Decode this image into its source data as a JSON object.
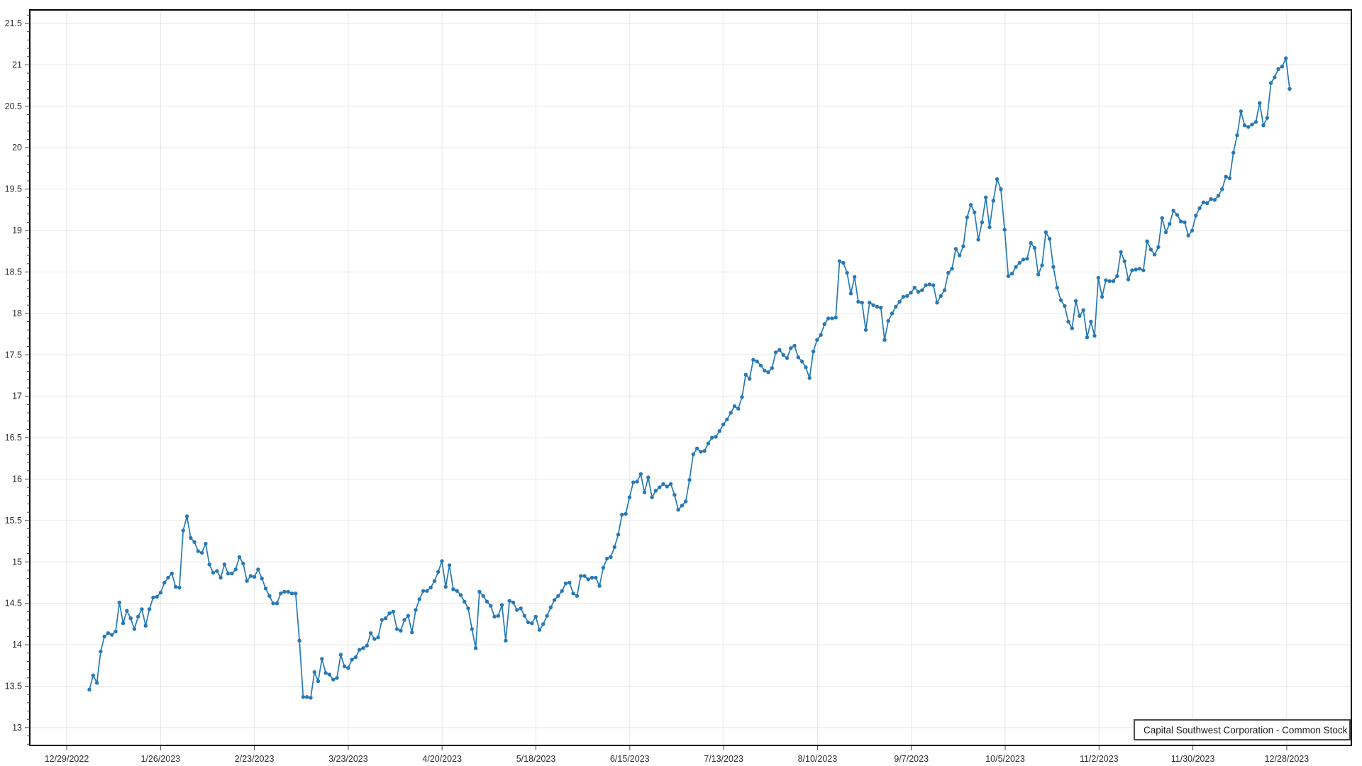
{
  "legend": {
    "label": "Capital Southwest Corporation - Common Stock"
  },
  "colors": {
    "series": "#2779b5",
    "grid": "#e6e6e6",
    "axis_border": "#000000",
    "tick": "#444444",
    "label": "#2b2b2b",
    "legend_border": "#4c4c4c",
    "background": "#ffffff"
  },
  "chart_data": {
    "type": "line",
    "title": "",
    "series_name": "Capital Southwest Corporation - Common Stock",
    "marker": "circle",
    "grid": true,
    "legend_position": "bottom-right",
    "xlabel": "",
    "ylabel": "",
    "ylim": [
      12.785,
      21.663
    ],
    "y_ticks": [
      13,
      13.5,
      14,
      14.5,
      15,
      15.5,
      16,
      16.5,
      17,
      17.5,
      18,
      18.5,
      19,
      19.5,
      20,
      20.5,
      21,
      21.5
    ],
    "y_minor_tick_step": 0.1,
    "x_tick_labels": [
      "12/29/2022",
      "1/26/2023",
      "2/23/2023",
      "3/23/2023",
      "4/20/2023",
      "5/18/2023",
      "6/15/2023",
      "7/13/2023",
      "8/10/2023",
      "9/7/2023",
      "10/5/2023",
      "11/2/2023",
      "11/30/2023",
      "12/28/2023"
    ],
    "values": [
      13.46,
      13.63,
      13.54,
      13.92,
      14.1,
      14.14,
      14.12,
      14.16,
      14.51,
      14.26,
      14.41,
      14.32,
      14.19,
      14.34,
      14.43,
      14.23,
      14.43,
      14.57,
      14.58,
      14.63,
      14.75,
      14.81,
      14.86,
      14.7,
      14.69,
      15.38,
      15.55,
      15.29,
      15.24,
      15.13,
      15.11,
      15.22,
      14.97,
      14.87,
      14.89,
      14.81,
      14.97,
      14.86,
      14.86,
      14.91,
      15.06,
      14.98,
      14.77,
      14.83,
      14.82,
      14.91,
      14.8,
      14.68,
      14.59,
      14.5,
      14.5,
      14.62,
      14.64,
      14.64,
      14.62,
      14.62,
      14.05,
      13.37,
      13.37,
      13.36,
      13.67,
      13.56,
      13.83,
      13.66,
      13.64,
      13.58,
      13.6,
      13.88,
      13.74,
      13.72,
      13.82,
      13.85,
      13.94,
      13.96,
      13.99,
      14.14,
      14.07,
      14.09,
      14.3,
      14.32,
      14.38,
      14.4,
      14.19,
      14.17,
      14.3,
      14.35,
      14.15,
      14.42,
      14.55,
      14.65,
      14.65,
      14.69,
      14.77,
      14.88,
      15.01,
      14.7,
      14.96,
      14.67,
      14.65,
      14.6,
      14.52,
      14.44,
      14.19,
      13.96,
      14.64,
      14.59,
      14.52,
      14.47,
      14.34,
      14.35,
      14.48,
      14.05,
      14.53,
      14.51,
      14.42,
      14.44,
      14.35,
      14.27,
      14.26,
      14.34,
      14.18,
      14.25,
      14.35,
      14.45,
      14.54,
      14.59,
      14.65,
      14.74,
      14.75,
      14.62,
      14.59,
      14.83,
      14.83,
      14.79,
      14.81,
      14.81,
      14.71,
      14.93,
      15.04,
      15.06,
      15.18,
      15.33,
      15.57,
      15.58,
      15.78,
      15.96,
      15.97,
      16.06,
      15.84,
      16.02,
      15.78,
      15.86,
      15.9,
      15.94,
      15.91,
      15.94,
      15.81,
      15.63,
      15.68,
      15.73,
      15.99,
      16.3,
      16.37,
      16.33,
      16.34,
      16.43,
      16.5,
      16.51,
      16.58,
      16.66,
      16.72,
      16.8,
      16.88,
      16.85,
      16.99,
      17.26,
      17.21,
      17.44,
      17.42,
      17.37,
      17.31,
      17.29,
      17.34,
      17.53,
      17.56,
      17.5,
      17.46,
      17.58,
      17.61,
      17.47,
      17.42,
      17.35,
      17.22,
      17.54,
      17.68,
      17.74,
      17.87,
      17.94,
      17.94,
      17.95,
      18.63,
      18.61,
      18.49,
      18.24,
      18.44,
      18.14,
      18.13,
      17.8,
      18.13,
      18.1,
      18.08,
      18.07,
      17.68,
      17.91,
      18.0,
      18.08,
      18.14,
      18.2,
      18.21,
      18.25,
      18.31,
      18.26,
      18.28,
      18.34,
      18.35,
      18.34,
      18.13,
      18.21,
      18.28,
      18.49,
      18.54,
      18.78,
      18.7,
      18.81,
      19.16,
      19.31,
      19.22,
      18.89,
      19.1,
      19.4,
      19.04,
      19.36,
      19.62,
      19.5,
      19.01,
      18.45,
      18.48,
      18.56,
      18.61,
      18.65,
      18.66,
      18.85,
      18.79,
      18.47,
      18.58,
      18.98,
      18.9,
      18.56,
      18.31,
      18.16,
      18.09,
      17.9,
      17.82,
      18.15,
      17.97,
      18.04,
      17.71,
      17.9,
      17.73,
      18.43,
      18.2,
      18.4,
      18.39,
      18.39,
      18.45,
      18.74,
      18.63,
      18.41,
      18.52,
      18.53,
      18.54,
      18.52,
      18.87,
      18.77,
      18.71,
      18.8,
      19.15,
      18.98,
      19.08,
      19.24,
      19.19,
      19.11,
      19.1,
      18.94,
      19.0,
      19.18,
      19.27,
      19.34,
      19.33,
      19.38,
      19.37,
      19.42,
      19.5,
      19.65,
      19.63,
      19.94,
      20.15,
      20.44,
      20.27,
      20.25,
      20.28,
      20.31,
      20.54,
      20.27,
      20.36,
      20.78,
      20.85,
      20.95,
      20.98,
      21.08,
      20.71
    ]
  }
}
